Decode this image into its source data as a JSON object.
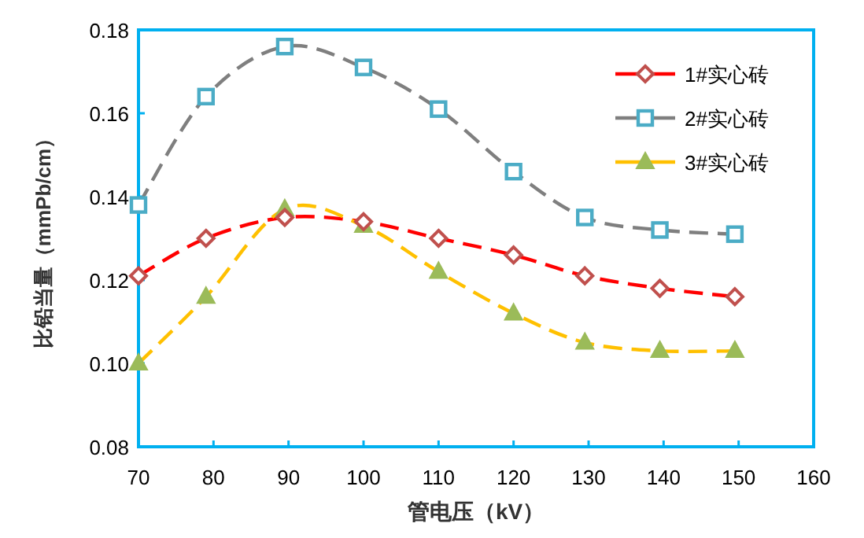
{
  "chart_data": {
    "type": "line",
    "xlabel": "管电压（kV）",
    "ylabel": "比铅当量（mmPb/cm）",
    "x": [
      70,
      79,
      89.5,
      100,
      110,
      120,
      129.5,
      139.5,
      149.5
    ],
    "xlim": [
      70,
      160
    ],
    "xticks": [
      70,
      80,
      90,
      100,
      110,
      120,
      130,
      140,
      150,
      160
    ],
    "ylim": [
      0.08,
      0.18
    ],
    "yticks": [
      0.08,
      {
        "value": 0.1,
        "label": "0.10"
      },
      0.12,
      0.14,
      0.16,
      0.18
    ],
    "grid": false,
    "legend": "top right",
    "line_style": "dashed",
    "series": [
      {
        "name": "1#实心砖",
        "color": "#ff0000",
        "marker": "diamond",
        "values": [
          0.121,
          0.13,
          0.135,
          0.134,
          0.13,
          0.126,
          0.121,
          0.118,
          0.116
        ]
      },
      {
        "name": "2#实心砖",
        "color": "#7f7f7f",
        "marker": "square",
        "values": [
          0.138,
          0.164,
          0.176,
          0.171,
          0.161,
          0.146,
          0.135,
          0.132,
          0.131
        ]
      },
      {
        "name": "3#实心砖",
        "color": "#ffc000",
        "marker": "triangle",
        "values": [
          0.1,
          0.116,
          0.137,
          0.133,
          0.122,
          0.112,
          0.105,
          0.103,
          0.103
        ]
      }
    ]
  }
}
